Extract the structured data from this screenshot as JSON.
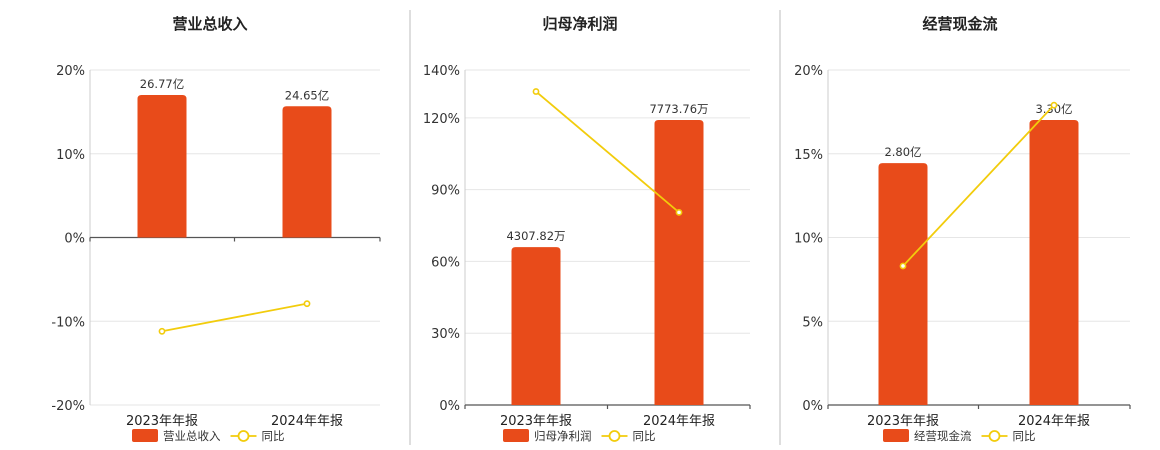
{
  "colors": {
    "bar": "#E84B1A",
    "line": "#F2CC0C"
  },
  "legend_line_label": "同比",
  "chart_data": [
    {
      "type": "bar",
      "title": "营业总收入",
      "categories": [
        "2023年年报",
        "2024年年报"
      ],
      "values": [
        26.77,
        24.65
      ],
      "value_labels": [
        "26.77亿",
        "24.65亿"
      ],
      "value_unit": "亿",
      "series_name": "营业总收入",
      "yoy": [
        -11.2,
        -7.9
      ],
      "y_ticks": [
        "20%",
        "10%",
        "0%",
        "-10%",
        "-20%"
      ],
      "ylim": [
        -20,
        20
      ]
    },
    {
      "type": "bar",
      "title": "归母净利润",
      "categories": [
        "2023年年报",
        "2024年年报"
      ],
      "values": [
        4307.82,
        7773.76
      ],
      "value_labels": [
        "4307.82万",
        "7773.76万"
      ],
      "value_unit": "万",
      "series_name": "归母净利润",
      "yoy": [
        131,
        80.5
      ],
      "y_ticks": [
        "140%",
        "120%",
        "90%",
        "60%",
        "30%",
        "0%"
      ],
      "ylim": [
        0,
        140
      ]
    },
    {
      "type": "bar",
      "title": "经营现金流",
      "categories": [
        "2023年年报",
        "2024年年报"
      ],
      "values": [
        2.8,
        3.3
      ],
      "value_labels": [
        "2.80亿",
        "3.30亿"
      ],
      "value_unit": "亿",
      "series_name": "经营现金流",
      "yoy": [
        8.3,
        17.9
      ],
      "y_ticks": [
        "20%",
        "15%",
        "10%",
        "5%",
        "0%"
      ],
      "ylim": [
        0,
        20
      ]
    }
  ]
}
